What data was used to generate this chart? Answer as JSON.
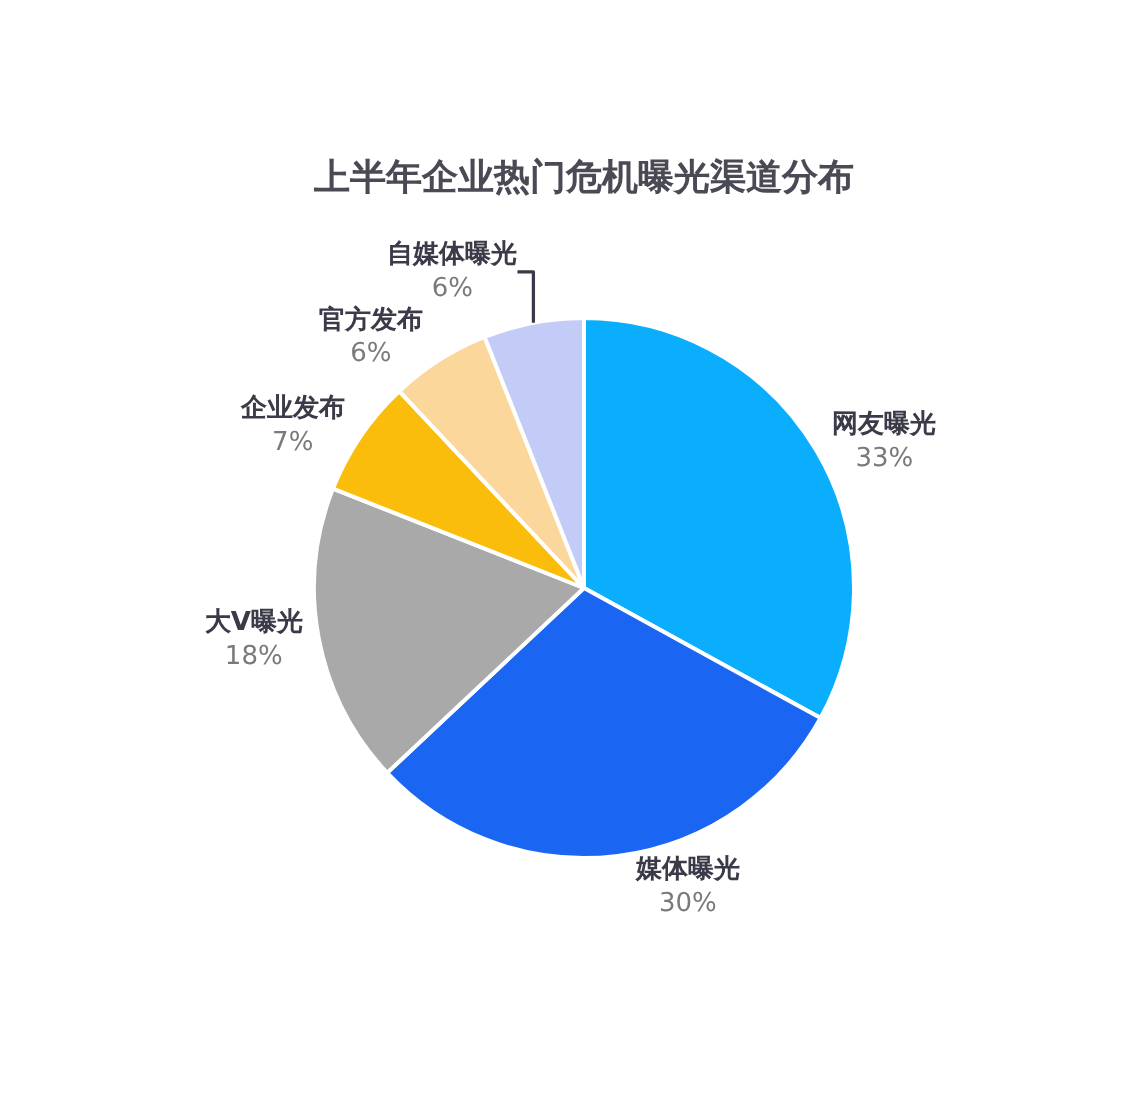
{
  "chart_data": {
    "type": "pie",
    "title": "上半年企业热门危机曝光渠道分布",
    "categories": [
      "网友曝光",
      "媒体曝光",
      "大V曝光",
      "企业发布",
      "官方发布",
      "自媒体曝光"
    ],
    "values": [
      33,
      30,
      18,
      7,
      6,
      6
    ],
    "colors": [
      "#0aaefc",
      "#1a66f2",
      "#a9a9a9",
      "#fbbd0b",
      "#fcd79c",
      "#c3cbf7"
    ],
    "value_labels": [
      "33%",
      "30%",
      "18%",
      "7%",
      "6%",
      "6%"
    ]
  }
}
